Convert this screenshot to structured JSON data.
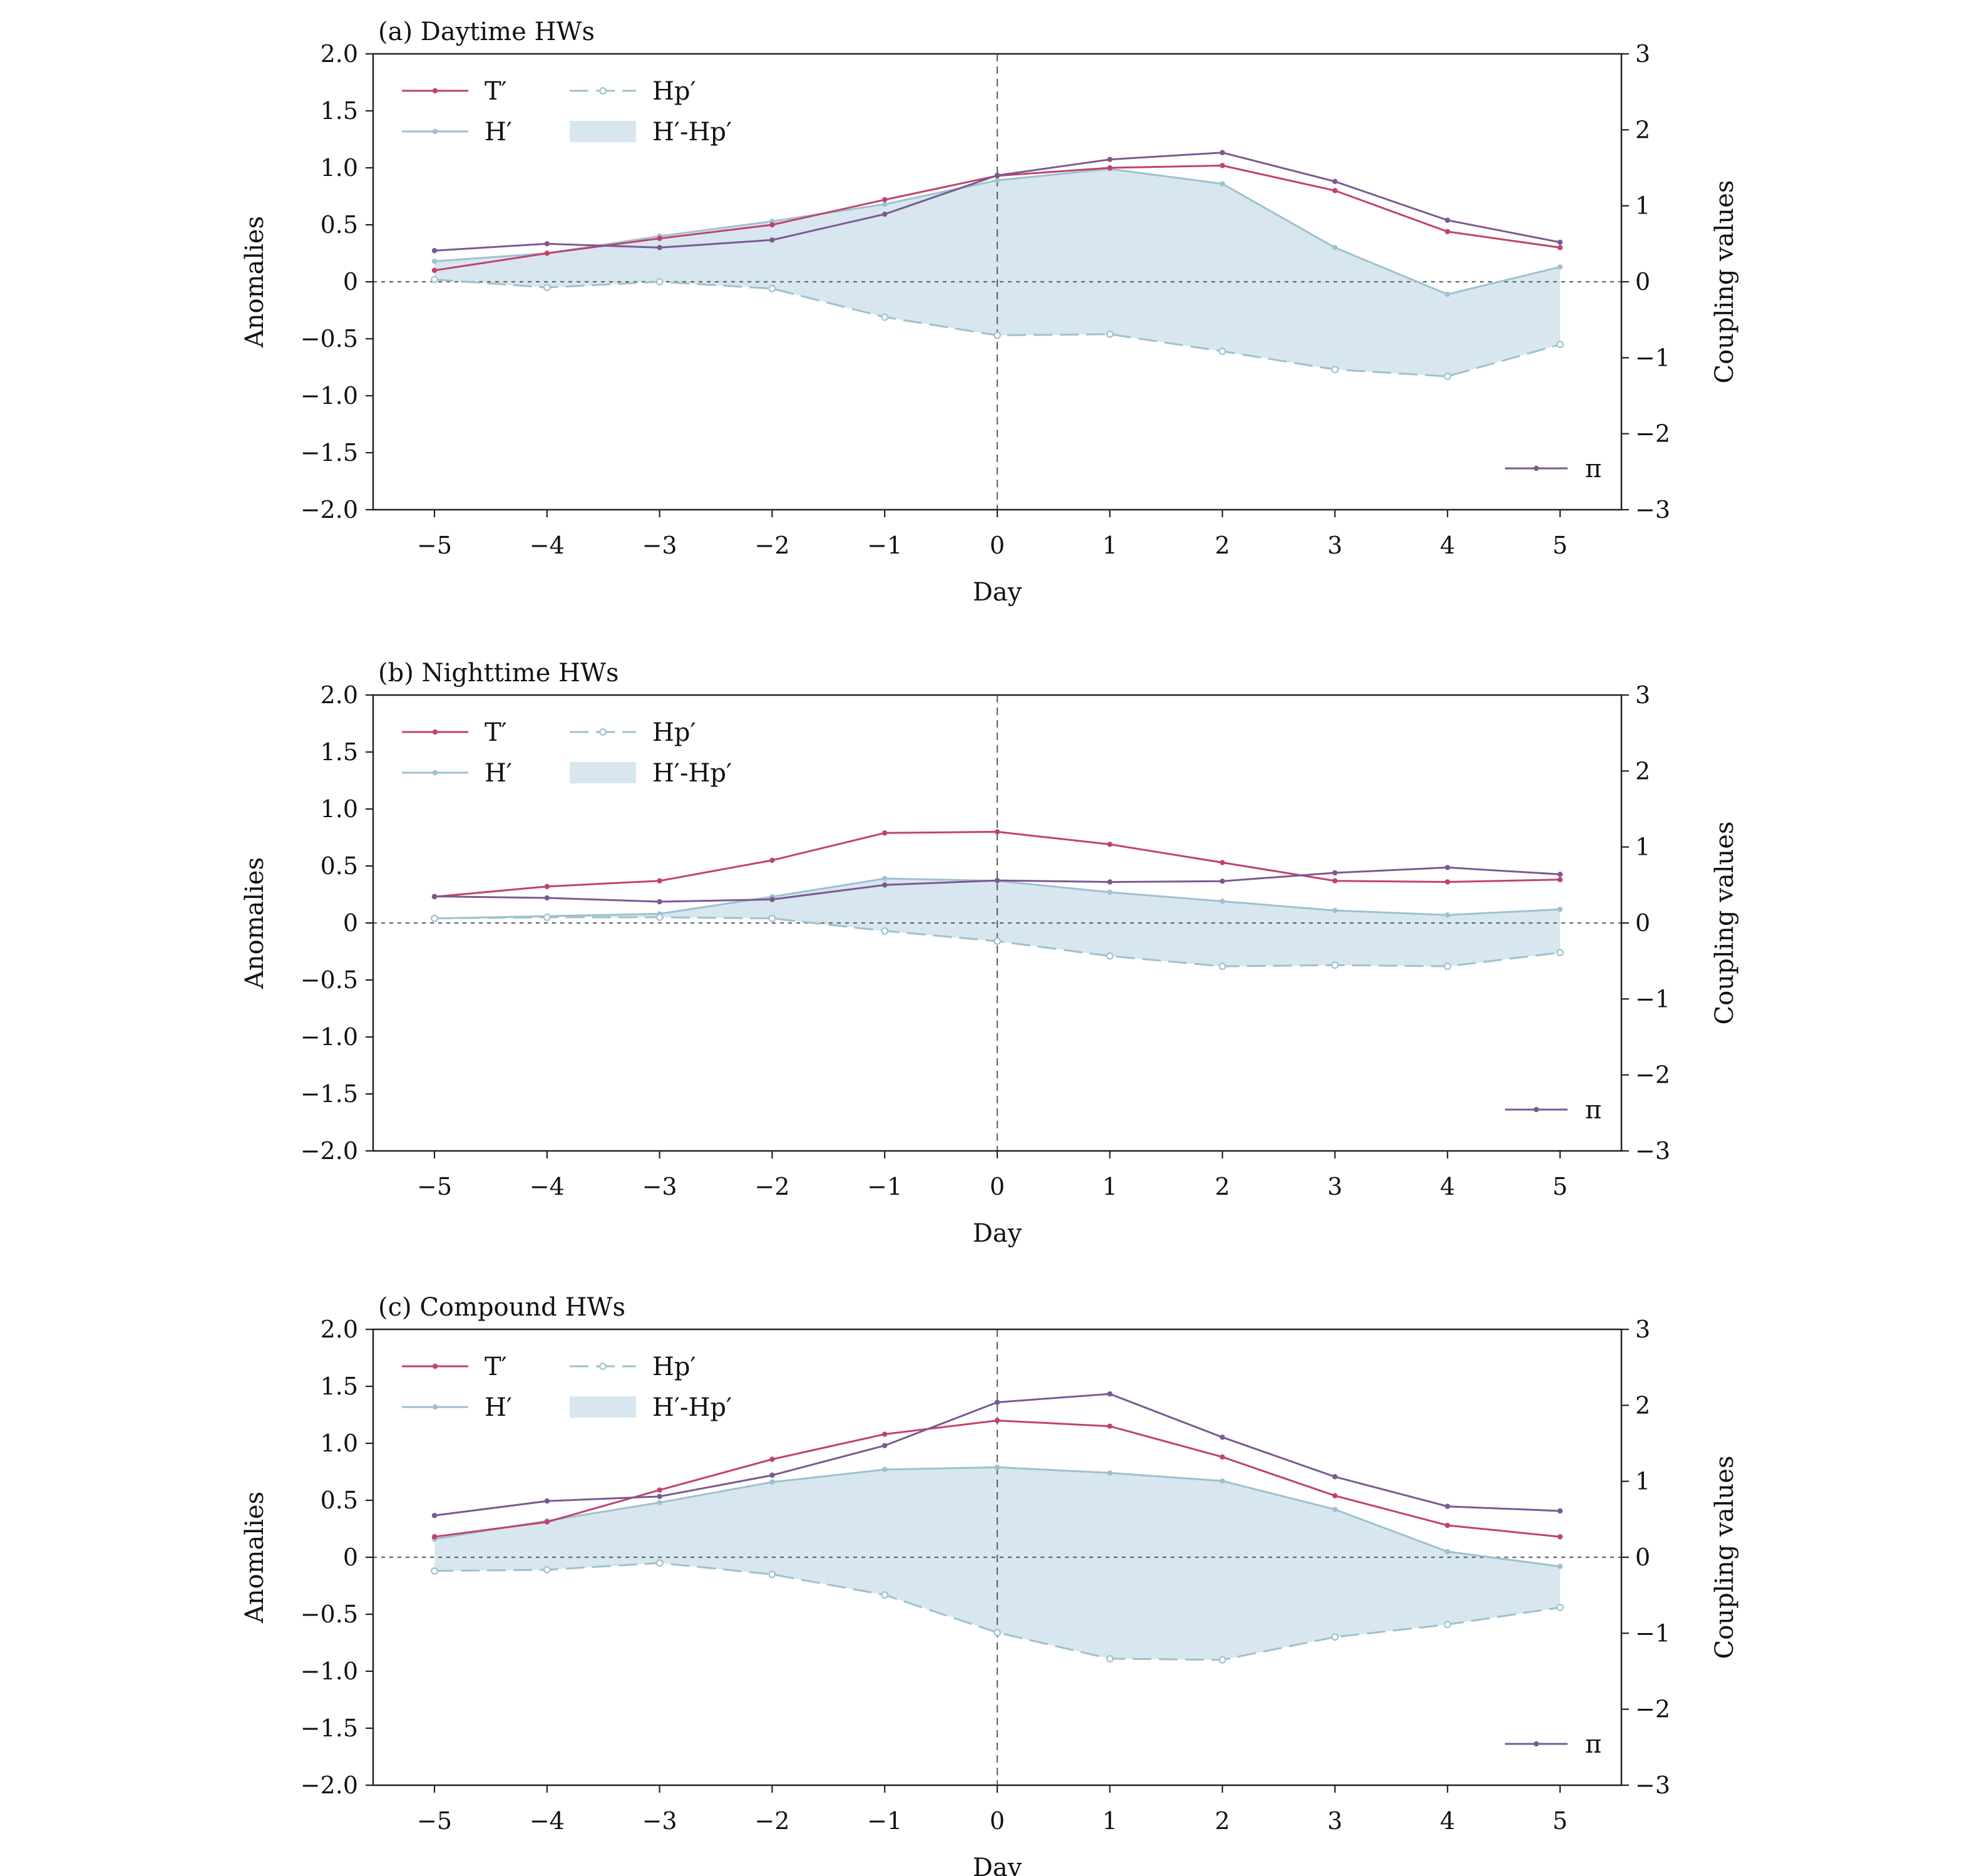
{
  "colors": {
    "T": "#c2426e",
    "H": "#9ec1cf",
    "Hp": "#9ec1cf",
    "fill": "#d8e6ef",
    "pi": "#7a5a93",
    "axis": "#222222",
    "refline": "#666666"
  },
  "chart_data": [
    {
      "type": "line",
      "title": "(a) Daytime HWs",
      "xlabel": "Day",
      "ylabel": "Anomalies",
      "ylabel_right": "Coupling values",
      "x": [
        -5,
        -4,
        -3,
        -2,
        -1,
        0,
        1,
        2,
        3,
        4,
        5
      ],
      "xticklabels": [
        "−5",
        "−4",
        "−3",
        "−2",
        "−1",
        "0",
        "1",
        "2",
        "3",
        "4",
        "5"
      ],
      "ylim": [
        -2.0,
        2.0
      ],
      "yticklabels": [
        "−2.0",
        "−1.5",
        "−1.0",
        "−0.5",
        "0",
        "0.5",
        "1.0",
        "1.5",
        "2.0"
      ],
      "ylim_right": [
        -3,
        3
      ],
      "yticklabels_right": [
        "−3",
        "−2",
        "−1",
        "0",
        "1",
        "2",
        "3"
      ],
      "series": [
        {
          "name": "T′",
          "axis": "left",
          "values": [
            0.1,
            0.25,
            0.38,
            0.5,
            0.72,
            0.93,
            1.0,
            1.02,
            0.8,
            0.44,
            0.3
          ]
        },
        {
          "name": "H′",
          "axis": "left",
          "values": [
            0.18,
            0.25,
            0.4,
            0.53,
            0.68,
            0.89,
            0.99,
            0.86,
            0.3,
            -0.11,
            0.13
          ]
        },
        {
          "name": "Hp′",
          "axis": "left",
          "values": [
            0.02,
            -0.05,
            0.0,
            -0.06,
            -0.31,
            -0.47,
            -0.46,
            -0.61,
            -0.77,
            -0.83,
            -0.55
          ]
        },
        {
          "name": "π",
          "axis": "right",
          "values": [
            0.41,
            0.5,
            0.45,
            0.55,
            0.89,
            1.4,
            1.61,
            1.7,
            1.32,
            0.81,
            0.52
          ]
        }
      ],
      "fill_between": {
        "name": "H′-Hp′",
        "upper": "H′",
        "lower": "Hp′"
      },
      "legend": {
        "position": "upper-left",
        "entries": [
          "T′",
          "Hp′",
          "H′",
          "H′-Hp′"
        ],
        "right_entry": "π",
        "right_position": "lower-right"
      },
      "vline_x": 0,
      "hline_y": 0
    },
    {
      "type": "line",
      "title": "(b) Nighttime HWs",
      "xlabel": "Day",
      "ylabel": "Anomalies",
      "ylabel_right": "Coupling values",
      "x": [
        -5,
        -4,
        -3,
        -2,
        -1,
        0,
        1,
        2,
        3,
        4,
        5
      ],
      "xticklabels": [
        "−5",
        "−4",
        "−3",
        "−2",
        "−1",
        "0",
        "1",
        "2",
        "3",
        "4",
        "5"
      ],
      "ylim": [
        -2.0,
        2.0
      ],
      "yticklabels": [
        "−2.0",
        "−1.5",
        "−1.0",
        "−0.5",
        "0",
        "0.5",
        "1.0",
        "1.5",
        "2.0"
      ],
      "ylim_right": [
        -3,
        3
      ],
      "yticklabels_right": [
        "−3",
        "−2",
        "−1",
        "0",
        "1",
        "2",
        "3"
      ],
      "series": [
        {
          "name": "T′",
          "axis": "left",
          "values": [
            0.23,
            0.32,
            0.37,
            0.55,
            0.79,
            0.8,
            0.69,
            0.53,
            0.37,
            0.36,
            0.38
          ]
        },
        {
          "name": "H′",
          "axis": "left",
          "values": [
            0.04,
            0.06,
            0.08,
            0.23,
            0.39,
            0.37,
            0.27,
            0.19,
            0.11,
            0.07,
            0.12
          ]
        },
        {
          "name": "Hp′",
          "axis": "left",
          "values": [
            0.04,
            0.05,
            0.05,
            0.04,
            -0.07,
            -0.16,
            -0.29,
            -0.38,
            -0.37,
            -0.38,
            -0.26
          ]
        },
        {
          "name": "π",
          "axis": "right",
          "values": [
            0.35,
            0.33,
            0.28,
            0.31,
            0.5,
            0.56,
            0.54,
            0.55,
            0.66,
            0.73,
            0.64
          ]
        }
      ],
      "fill_between": {
        "name": "H′-Hp′",
        "upper": "H′",
        "lower": "Hp′"
      },
      "legend": {
        "position": "upper-left",
        "entries": [
          "T′",
          "Hp′",
          "H′",
          "H′-Hp′"
        ],
        "right_entry": "π",
        "right_position": "lower-right"
      },
      "vline_x": 0,
      "hline_y": 0
    },
    {
      "type": "line",
      "title": "(c) Compound HWs",
      "xlabel": "Day",
      "ylabel": "Anomalies",
      "ylabel_right": "Coupling values",
      "x": [
        -5,
        -4,
        -3,
        -2,
        -1,
        0,
        1,
        2,
        3,
        4,
        5
      ],
      "xticklabels": [
        "−5",
        "−4",
        "−3",
        "−2",
        "−1",
        "0",
        "1",
        "2",
        "3",
        "4",
        "5"
      ],
      "ylim": [
        -2.0,
        2.0
      ],
      "yticklabels": [
        "−2.0",
        "−1.5",
        "−1.0",
        "−0.5",
        "0",
        "0.5",
        "1.0",
        "1.5",
        "2.0"
      ],
      "ylim_right": [
        -3,
        3
      ],
      "yticklabels_right": [
        "−3",
        "−2",
        "−1",
        "0",
        "1",
        "2",
        "3"
      ],
      "series": [
        {
          "name": "T′",
          "axis": "left",
          "values": [
            0.18,
            0.31,
            0.59,
            0.86,
            1.08,
            1.2,
            1.15,
            0.88,
            0.54,
            0.28,
            0.18
          ]
        },
        {
          "name": "H′",
          "axis": "left",
          "values": [
            0.16,
            0.32,
            0.48,
            0.66,
            0.77,
            0.79,
            0.74,
            0.67,
            0.42,
            0.05,
            -0.08
          ]
        },
        {
          "name": "Hp′",
          "axis": "left",
          "values": [
            -0.12,
            -0.11,
            -0.05,
            -0.15,
            -0.33,
            -0.66,
            -0.89,
            -0.9,
            -0.7,
            -0.59,
            -0.44
          ]
        },
        {
          "name": "π",
          "axis": "right",
          "values": [
            0.55,
            0.74,
            0.8,
            1.08,
            1.47,
            2.04,
            2.15,
            1.58,
            1.06,
            0.67,
            0.61
          ]
        }
      ],
      "fill_between": {
        "name": "H′-Hp′",
        "upper": "H′",
        "lower": "Hp′"
      },
      "legend": {
        "position": "upper-left",
        "entries": [
          "T′",
          "Hp′",
          "H′",
          "H′-Hp′"
        ],
        "right_entry": "π",
        "right_position": "lower-right"
      },
      "vline_x": 0,
      "hline_y": 0
    }
  ]
}
